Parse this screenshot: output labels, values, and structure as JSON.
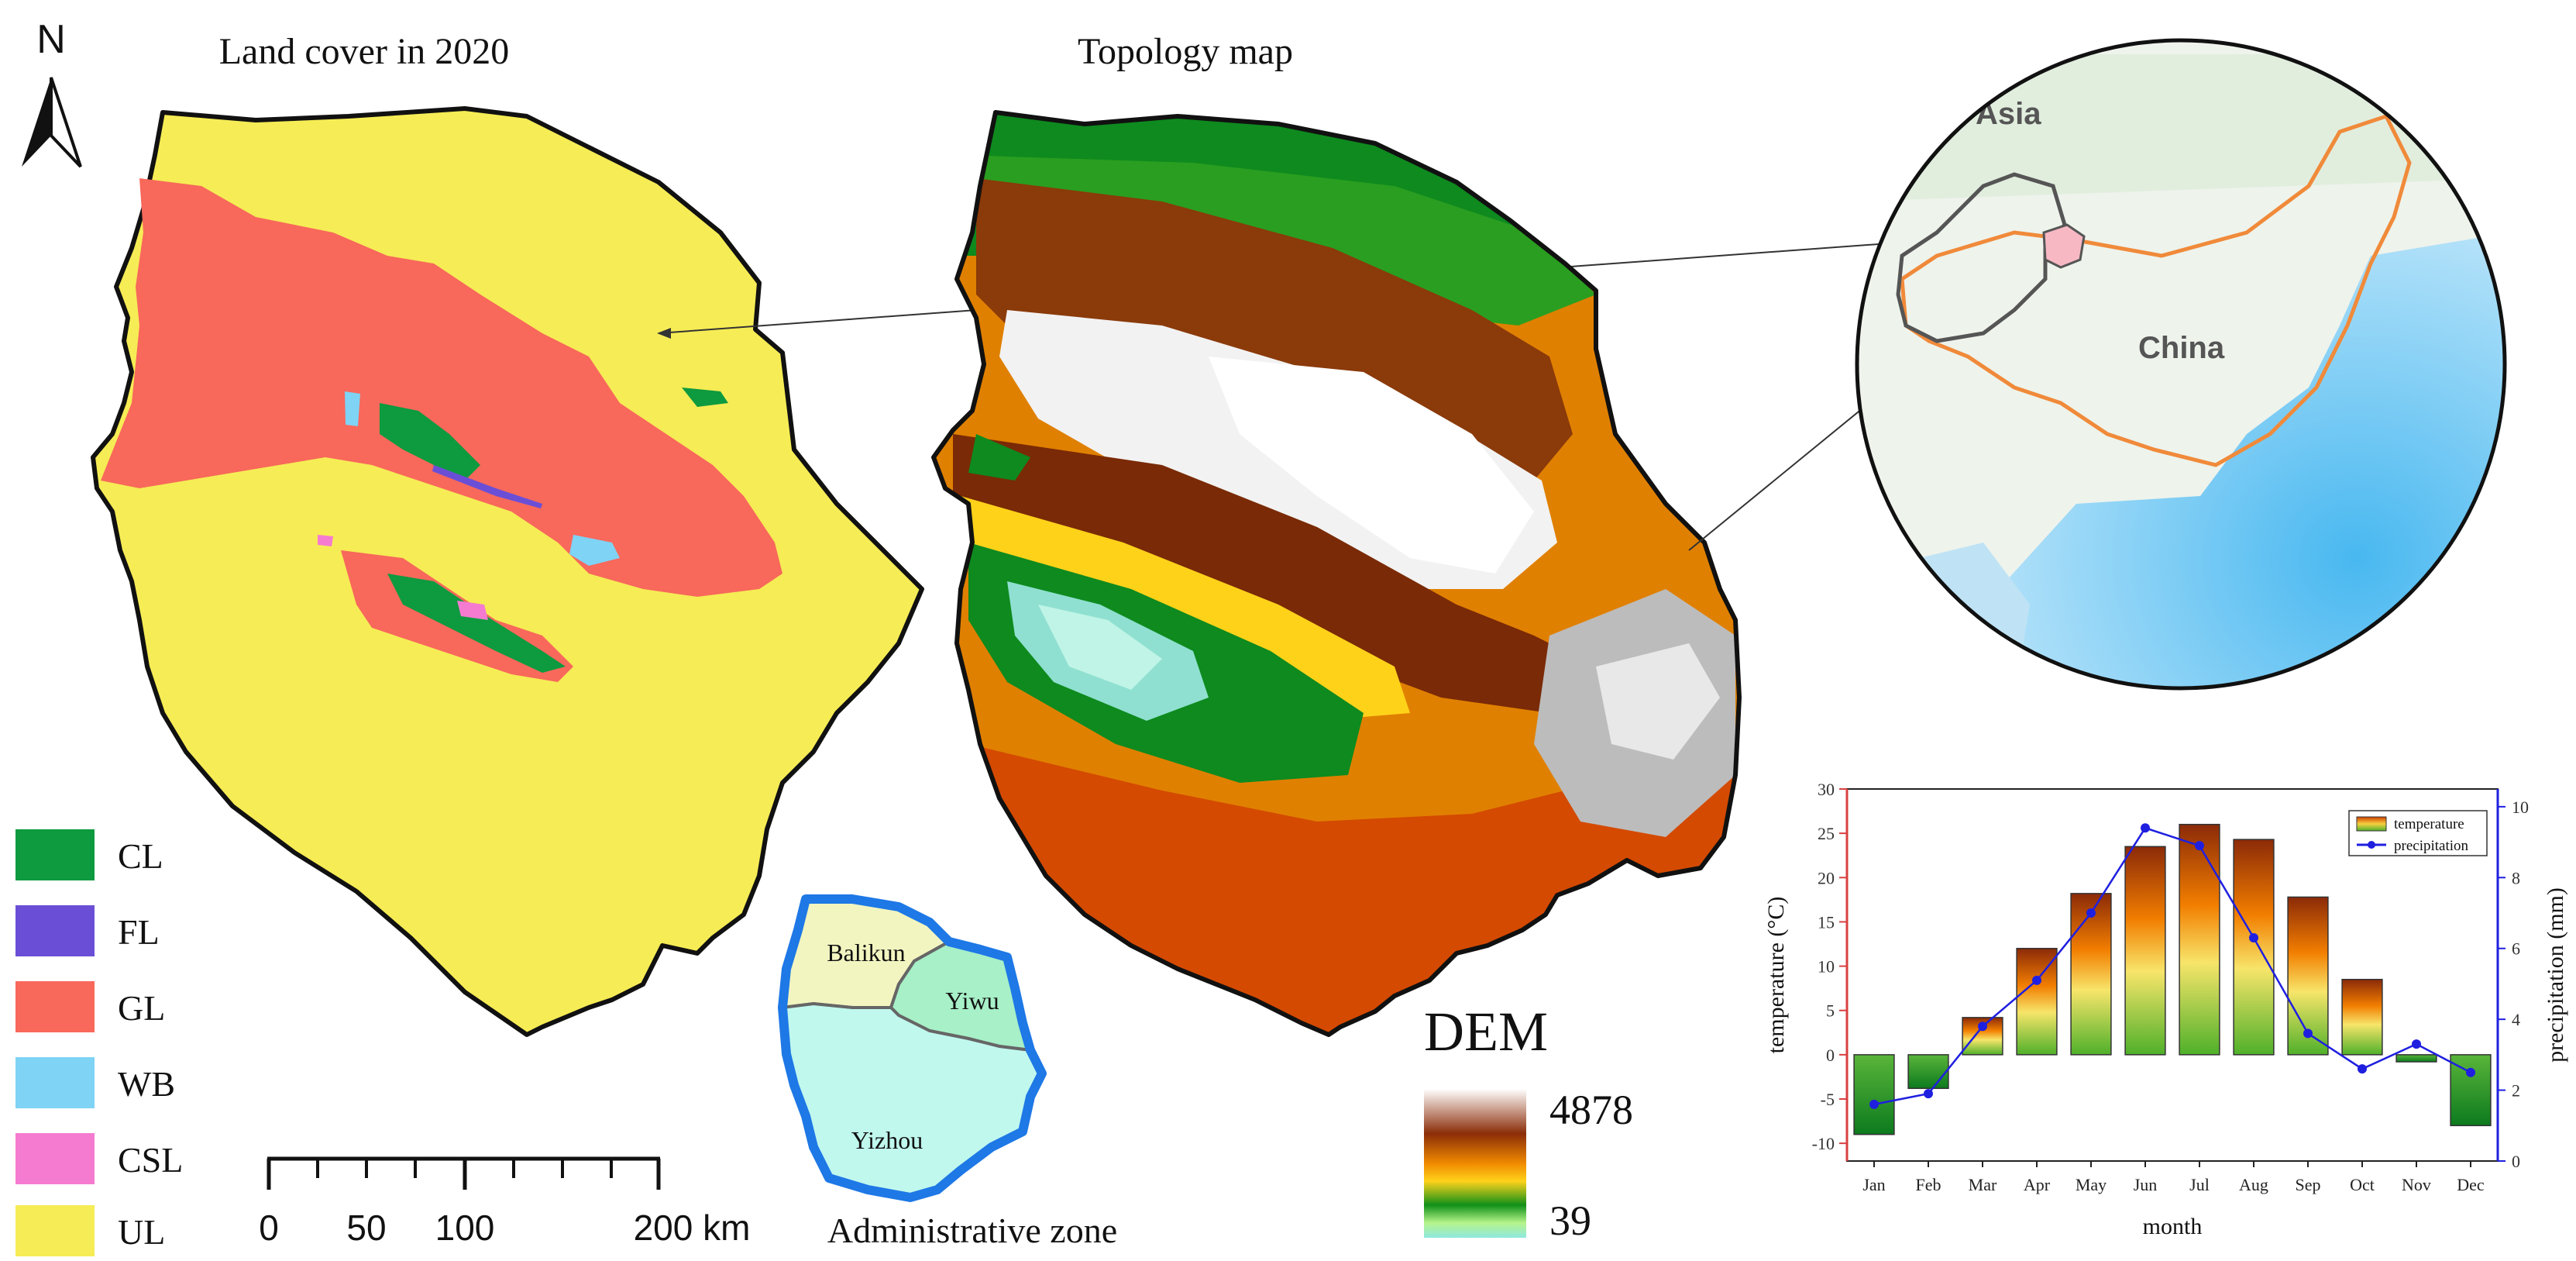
{
  "panels": {
    "landcover_title": "Land cover in 2020",
    "topology_title": "Topology map",
    "north_letter": "N",
    "admin_title": "Administrative zone"
  },
  "legend": {
    "items": [
      {
        "code": "CL",
        "color": "#0e9a3f"
      },
      {
        "code": "FL",
        "color": "#6a4fd6"
      },
      {
        "code": "GL",
        "color": "#f8685b"
      },
      {
        "code": "WB",
        "color": "#7fd3f5"
      },
      {
        "code": "CSL",
        "color": "#f57bd0"
      },
      {
        "code": "UL",
        "color": "#f6ec55"
      }
    ]
  },
  "scalebar": {
    "labels": [
      "0",
      "50",
      "100",
      "200 km"
    ]
  },
  "dem": {
    "title": "DEM",
    "max": "4878",
    "min": "39"
  },
  "admin": {
    "zones": [
      "Balikun",
      "Yiwu",
      "Yizhou"
    ]
  },
  "inset": {
    "labels": [
      "Asia",
      "China"
    ]
  },
  "chart_data": {
    "type": "bar",
    "categories": [
      "Jan",
      "Feb",
      "Mar",
      "Apr",
      "May",
      "Jun",
      "Jul",
      "Aug",
      "Sep",
      "Oct",
      "Nov",
      "Dec"
    ],
    "series": [
      {
        "name": "temperature",
        "type": "bar",
        "axis": "left",
        "values": [
          -9,
          -3.8,
          4.2,
          12,
          18.2,
          23.5,
          26,
          24.3,
          17.8,
          8.5,
          -0.8,
          -8
        ]
      },
      {
        "name": "precipitation",
        "type": "line",
        "axis": "right",
        "values": [
          1.6,
          1.9,
          3.8,
          5.1,
          7.0,
          9.4,
          8.9,
          6.3,
          3.6,
          2.6,
          3.3,
          2.5
        ]
      }
    ],
    "xlabel": "month",
    "ylabel": "temperature (°C)",
    "y2label": "precipitation (mm)",
    "ylim": [
      -12,
      30
    ],
    "y2lim": [
      0,
      10.5
    ],
    "yticks": [
      -10,
      -5,
      0,
      5,
      10,
      15,
      20,
      25,
      30
    ],
    "y2ticks": [
      0,
      2,
      4,
      6,
      8,
      10
    ],
    "legend": "top-right",
    "colors": {
      "line": "#1f1fe0",
      "left_axis": "#d94040",
      "right_axis": "#1f1fe0"
    }
  }
}
